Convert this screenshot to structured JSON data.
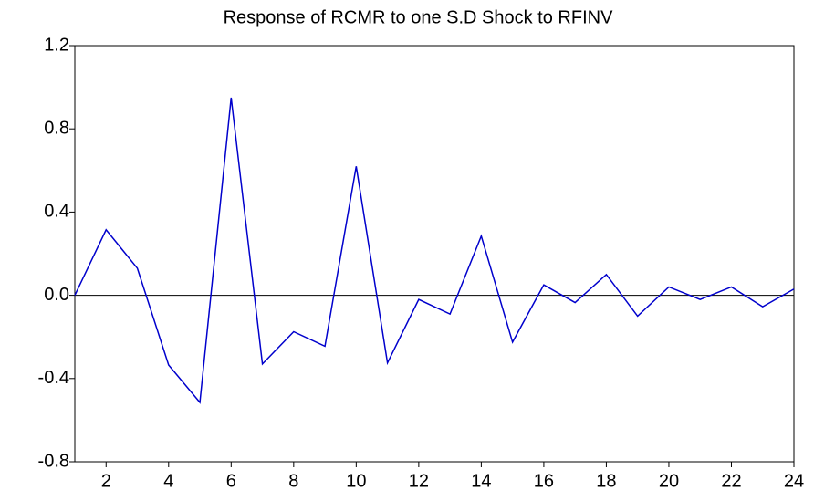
{
  "chart_data": {
    "type": "line",
    "title": "Response of RCMR to one S.D Shock to RFINV",
    "x": [
      1,
      2,
      3,
      4,
      5,
      6,
      7,
      8,
      9,
      10,
      11,
      12,
      13,
      14,
      15,
      16,
      17,
      18,
      19,
      20,
      21,
      22,
      23,
      24
    ],
    "series": [
      {
        "color": "#0000cc",
        "values": [
          0.0,
          0.315,
          0.13,
          -0.335,
          -0.515,
          0.95,
          -0.33,
          -0.175,
          -0.245,
          0.62,
          -0.325,
          -0.02,
          -0.09,
          0.285,
          -0.225,
          0.05,
          -0.035,
          0.1,
          -0.1,
          0.04,
          -0.02,
          0.04,
          -0.055,
          0.03
        ]
      }
    ],
    "xlim": [
      1,
      24
    ],
    "xticks": [
      2,
      4,
      6,
      8,
      10,
      12,
      14,
      16,
      18,
      20,
      22,
      24
    ],
    "ylim": [
      -0.8,
      1.2
    ],
    "yticks": [
      {
        "value": 1.2,
        "label": "1.2"
      },
      {
        "value": 0.8,
        "label": "0.8"
      },
      {
        "value": 0.4,
        "label": "0.4"
      },
      {
        "value": 0,
        "label": "0.0"
      },
      {
        "value": -0.4,
        "label": "-0.4"
      },
      {
        "value": -0.8,
        "label": "-0.8"
      }
    ],
    "zero_line": true
  }
}
